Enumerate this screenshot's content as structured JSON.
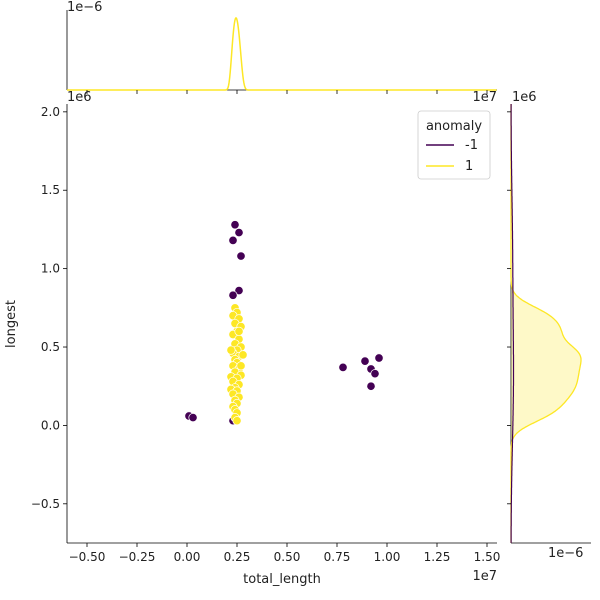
{
  "chart_data": {
    "type": "scatter",
    "title": "",
    "xlabel": "total_length",
    "ylabel": "longest",
    "x_offset_label": "1e7",
    "y_offset_label": "1e6",
    "top_marginal_offset_label": "1e−6",
    "top_marginal_right_offset_label": "1e7",
    "right_marginal_offset_label": "1e6",
    "right_marginal_bottom_offset_label": "1e−6",
    "x_tick_labels": [
      "−0.50",
      "−0.25",
      "0.00",
      "0.25",
      "0.50",
      "0.75",
      "1.00",
      "1.25",
      "1.50"
    ],
    "x_ticks": [
      -0.5,
      -0.25,
      0.0,
      0.25,
      0.5,
      0.75,
      1.0,
      1.25,
      1.5
    ],
    "y_tick_labels": [
      "−0.5",
      "0.0",
      "0.5",
      "1.0",
      "1.5",
      "2.0"
    ],
    "y_ticks": [
      -0.5,
      0.0,
      0.5,
      1.0,
      1.5,
      2.0
    ],
    "xlim": [
      -0.6,
      1.55
    ],
    "ylim": [
      -0.75,
      2.05
    ],
    "legend": {
      "title": "anomaly",
      "placement": "top-right",
      "entries": [
        {
          "label": "-1",
          "color": "#440154"
        },
        {
          "label": "1",
          "color": "#fde725"
        }
      ]
    },
    "series": [
      {
        "name": "-1",
        "color": "#440154",
        "points": [
          [
            0.24,
            1.28
          ],
          [
            0.26,
            1.23
          ],
          [
            0.23,
            1.18
          ],
          [
            0.27,
            1.08
          ],
          [
            0.26,
            0.86
          ],
          [
            0.23,
            0.83
          ],
          [
            0.01,
            0.06
          ],
          [
            0.03,
            0.05
          ],
          [
            0.78,
            0.37
          ],
          [
            0.89,
            0.41
          ],
          [
            0.92,
            0.36
          ],
          [
            0.96,
            0.43
          ],
          [
            0.94,
            0.33
          ],
          [
            0.92,
            0.25
          ],
          [
            0.23,
            0.03
          ]
        ]
      },
      {
        "name": "1",
        "color": "#fde725",
        "points": [
          [
            0.24,
            0.75
          ],
          [
            0.25,
            0.72
          ],
          [
            0.23,
            0.7
          ],
          [
            0.26,
            0.68
          ],
          [
            0.24,
            0.65
          ],
          [
            0.27,
            0.63
          ],
          [
            0.25,
            0.6
          ],
          [
            0.23,
            0.58
          ],
          [
            0.26,
            0.55
          ],
          [
            0.24,
            0.52
          ],
          [
            0.27,
            0.5
          ],
          [
            0.25,
            0.48
          ],
          [
            0.23,
            0.46
          ],
          [
            0.26,
            0.44
          ],
          [
            0.28,
            0.45
          ],
          [
            0.24,
            0.42
          ],
          [
            0.25,
            0.4
          ],
          [
            0.23,
            0.38
          ],
          [
            0.26,
            0.36
          ],
          [
            0.24,
            0.34
          ],
          [
            0.27,
            0.32
          ],
          [
            0.22,
            0.31
          ],
          [
            0.25,
            0.3
          ],
          [
            0.23,
            0.28
          ],
          [
            0.26,
            0.26
          ],
          [
            0.24,
            0.24
          ],
          [
            0.22,
            0.23
          ],
          [
            0.25,
            0.22
          ],
          [
            0.23,
            0.2
          ],
          [
            0.26,
            0.18
          ],
          [
            0.24,
            0.16
          ],
          [
            0.25,
            0.14
          ],
          [
            0.23,
            0.12
          ],
          [
            0.24,
            0.1
          ],
          [
            0.25,
            0.08
          ],
          [
            0.24,
            0.05
          ],
          [
            0.25,
            0.03
          ],
          [
            0.26,
            0.6
          ],
          [
            0.27,
            0.38
          ],
          [
            0.22,
            0.48
          ]
        ]
      }
    ]
  }
}
